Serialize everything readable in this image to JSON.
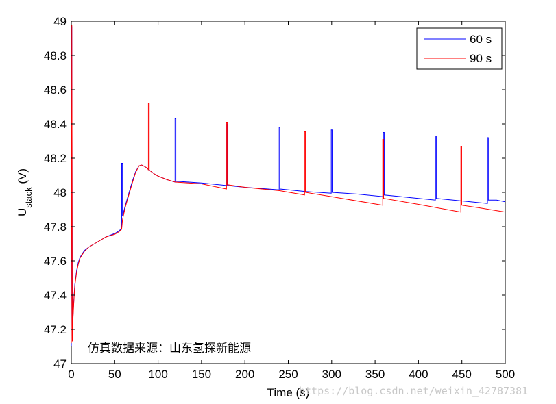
{
  "chart_data": {
    "type": "line",
    "title": "",
    "xlabel": "Time (s)",
    "ylabel": {
      "main": "U",
      "sub": "stack",
      "unit": " (V)"
    },
    "xlim": [
      0,
      500
    ],
    "ylim": [
      47,
      49
    ],
    "xticks": [
      0,
      50,
      100,
      150,
      200,
      250,
      300,
      350,
      400,
      450,
      500
    ],
    "yticks": [
      47,
      47.2,
      47.4,
      47.6,
      47.8,
      48,
      48.2,
      48.4,
      48.6,
      48.8,
      49
    ],
    "ytick_labels": [
      "47",
      "47.2",
      "47.4",
      "47.6",
      "47.8",
      "48",
      "48.2",
      "48.4",
      "48.6",
      "48.8",
      "49"
    ],
    "xtick_labels": [
      "0",
      "50",
      "100",
      "150",
      "200",
      "250",
      "300",
      "350",
      "400",
      "450",
      "500"
    ],
    "grid": false,
    "legend_position": "top-right",
    "series": [
      {
        "name": "60 s",
        "color": "#0000ff",
        "points": [
          [
            0,
            47.1
          ],
          [
            0.6,
            48.97
          ],
          [
            1.2,
            47.13
          ],
          [
            2,
            47.28
          ],
          [
            3,
            47.38
          ],
          [
            4,
            47.46
          ],
          [
            6,
            47.54
          ],
          [
            8,
            47.59
          ],
          [
            10,
            47.62
          ],
          [
            15,
            47.66
          ],
          [
            20,
            47.68
          ],
          [
            30,
            47.71
          ],
          [
            40,
            47.74
          ],
          [
            50,
            47.76
          ],
          [
            55,
            47.775
          ],
          [
            58,
            47.79
          ],
          [
            58,
            48.17
          ],
          [
            59,
            48.17
          ],
          [
            59,
            47.86
          ],
          [
            62,
            47.92
          ],
          [
            66,
            47.99
          ],
          [
            70,
            48.06
          ],
          [
            74,
            48.12
          ],
          [
            78,
            48.155
          ],
          [
            81,
            48.16
          ],
          [
            85,
            48.15
          ],
          [
            90,
            48.13
          ],
          [
            95,
            48.11
          ],
          [
            100,
            48.095
          ],
          [
            110,
            48.075
          ],
          [
            119.5,
            48.06
          ],
          [
            119.5,
            48.43
          ],
          [
            120.5,
            48.43
          ],
          [
            120.5,
            48.065
          ],
          [
            150,
            48.055
          ],
          [
            179.5,
            48.04
          ],
          [
            179.5,
            48.4
          ],
          [
            180.5,
            48.4
          ],
          [
            180.5,
            48.04
          ],
          [
            200,
            48.03
          ],
          [
            239.5,
            48.015
          ],
          [
            239.5,
            48.38
          ],
          [
            240.5,
            48.38
          ],
          [
            240.5,
            48.02
          ],
          [
            270,
            48.005
          ],
          [
            299.5,
            47.995
          ],
          [
            299.5,
            48.365
          ],
          [
            300.5,
            48.365
          ],
          [
            300.5,
            48.0
          ],
          [
            330,
            47.99
          ],
          [
            359.5,
            47.975
          ],
          [
            359.5,
            48.35
          ],
          [
            360.5,
            48.35
          ],
          [
            360.5,
            47.985
          ],
          [
            390,
            47.97
          ],
          [
            419.5,
            47.955
          ],
          [
            419.5,
            48.33
          ],
          [
            420.5,
            48.33
          ],
          [
            420.5,
            47.965
          ],
          [
            450,
            47.95
          ],
          [
            479.5,
            47.935
          ],
          [
            479.5,
            48.32
          ],
          [
            480.5,
            48.32
          ],
          [
            480.5,
            47.955
          ],
          [
            490,
            47.955
          ],
          [
            500,
            47.945
          ]
        ]
      },
      {
        "name": "90 s",
        "color": "#ff0000",
        "points": [
          [
            0,
            47.12
          ],
          [
            0.6,
            48.98
          ],
          [
            1.2,
            47.13
          ],
          [
            2,
            47.27
          ],
          [
            3,
            47.37
          ],
          [
            4,
            47.45
          ],
          [
            6,
            47.53
          ],
          [
            8,
            47.58
          ],
          [
            10,
            47.615
          ],
          [
            15,
            47.655
          ],
          [
            20,
            47.68
          ],
          [
            30,
            47.71
          ],
          [
            40,
            47.74
          ],
          [
            50,
            47.755
          ],
          [
            55,
            47.77
          ],
          [
            58,
            47.785
          ],
          [
            59,
            47.84
          ],
          [
            62,
            47.91
          ],
          [
            66,
            47.98
          ],
          [
            70,
            48.05
          ],
          [
            74,
            48.115
          ],
          [
            78,
            48.155
          ],
          [
            81,
            48.16
          ],
          [
            85,
            48.15
          ],
          [
            88,
            48.14
          ],
          [
            88.8,
            48.13
          ],
          [
            88.8,
            48.52
          ],
          [
            89.8,
            48.52
          ],
          [
            89.8,
            48.13
          ],
          [
            95,
            48.11
          ],
          [
            100,
            48.095
          ],
          [
            110,
            48.075
          ],
          [
            120,
            48.06
          ],
          [
            150,
            48.05
          ],
          [
            178.8,
            48.02
          ],
          [
            178.8,
            48.41
          ],
          [
            179.8,
            48.41
          ],
          [
            179.8,
            48.045
          ],
          [
            200,
            48.03
          ],
          [
            240,
            48.01
          ],
          [
            268.8,
            47.985
          ],
          [
            268.8,
            48.355
          ],
          [
            269.8,
            48.355
          ],
          [
            269.8,
            48.0
          ],
          [
            300,
            47.975
          ],
          [
            358.8,
            47.925
          ],
          [
            358.8,
            48.31
          ],
          [
            359.8,
            48.31
          ],
          [
            359.8,
            47.965
          ],
          [
            400,
            47.93
          ],
          [
            448.8,
            47.885
          ],
          [
            448.8,
            48.27
          ],
          [
            449.8,
            48.27
          ],
          [
            449.8,
            47.925
          ],
          [
            470,
            47.91
          ],
          [
            500,
            47.885
          ]
        ]
      }
    ],
    "annotation": "仿真数据来源：山东氢探新能源",
    "watermark": "https://blog.csdn.net/weixin_42787381"
  }
}
